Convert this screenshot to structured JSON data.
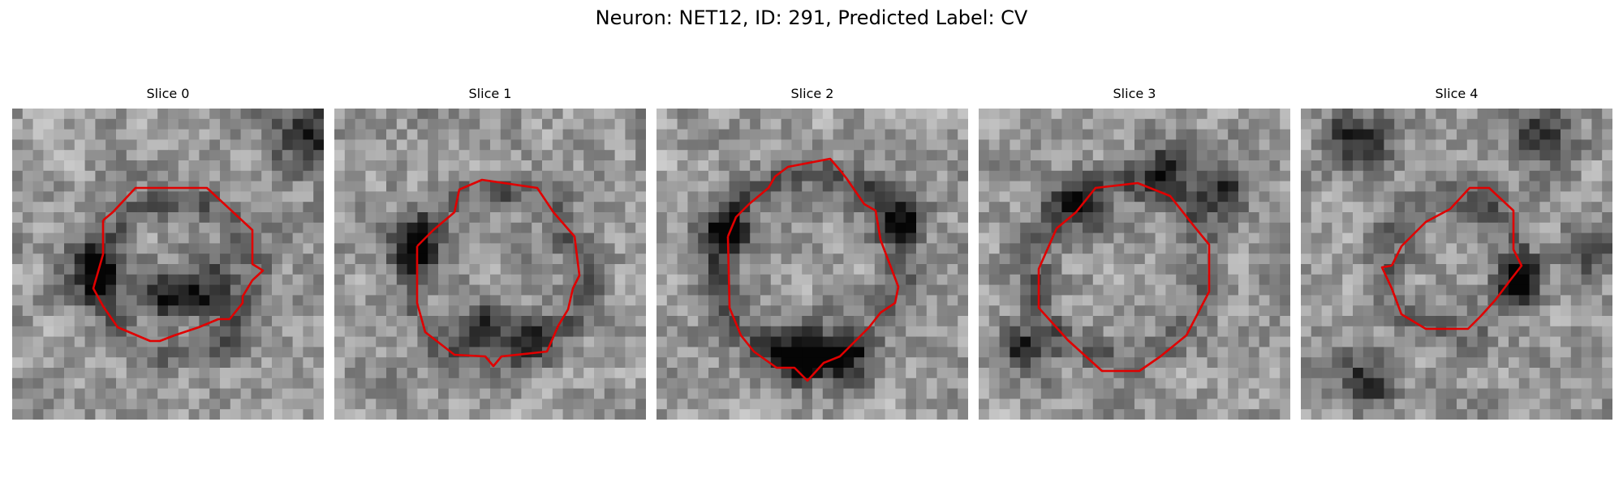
{
  "figure": {
    "title": "Neuron: NET12, ID: 291, Predicted Label: CV",
    "outline_color": "#e00000",
    "colormap": "gray"
  },
  "panels": [
    {
      "title": "Slice 0",
      "seed": 11,
      "dark_spots": [
        [
          0.27,
          0.52,
          0.1
        ],
        [
          0.62,
          0.58,
          0.09
        ],
        [
          0.95,
          0.08,
          0.12
        ],
        [
          0.48,
          0.6,
          0.08
        ]
      ]
    },
    {
      "title": "Slice 1",
      "seed": 23,
      "dark_spots": [
        [
          0.63,
          0.73,
          0.06
        ],
        [
          0.26,
          0.45,
          0.09
        ],
        [
          0.5,
          0.7,
          0.08
        ]
      ]
    },
    {
      "title": "Slice 2",
      "seed": 37,
      "dark_spots": [
        [
          0.45,
          0.78,
          0.1
        ],
        [
          0.22,
          0.4,
          0.08
        ],
        [
          0.78,
          0.35,
          0.09
        ],
        [
          0.6,
          0.8,
          0.08
        ]
      ]
    },
    {
      "title": "Slice 3",
      "seed": 49,
      "dark_spots": [
        [
          0.33,
          0.32,
          0.08
        ],
        [
          0.78,
          0.25,
          0.09
        ],
        [
          0.15,
          0.78,
          0.08
        ],
        [
          0.6,
          0.2,
          0.08
        ]
      ]
    },
    {
      "title": "Slice 4",
      "seed": 61,
      "dark_spots": [
        [
          0.18,
          0.1,
          0.1
        ],
        [
          0.78,
          0.1,
          0.09
        ],
        [
          0.2,
          0.88,
          0.09
        ],
        [
          0.7,
          0.55,
          0.07
        ],
        [
          0.92,
          0.45,
          0.08
        ]
      ]
    }
  ]
}
